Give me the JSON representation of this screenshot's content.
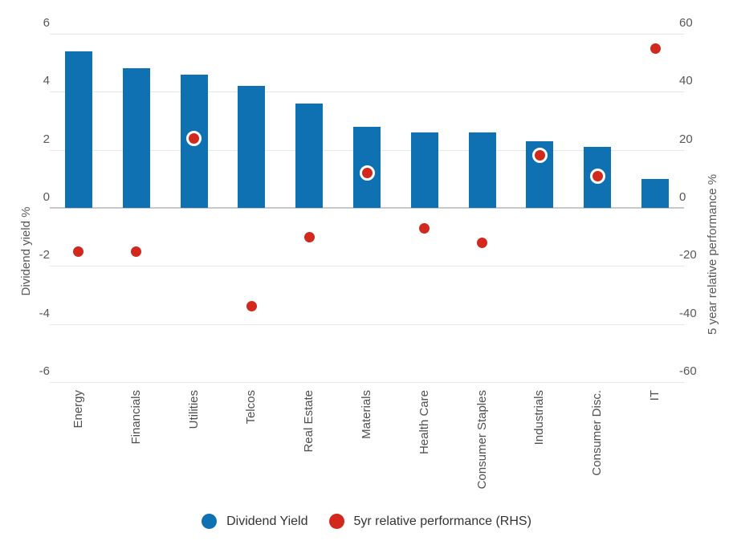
{
  "chart_data": {
    "type": "combo-bar-scatter",
    "categories": [
      "Energy",
      "Financials",
      "Utilities",
      "Telcos",
      "Real Estate",
      "Materials",
      "Health Care",
      "Consumer Staples",
      "Industrials",
      "Consumer Disc.",
      "IT"
    ],
    "series": [
      {
        "name": "Dividend Yield",
        "type": "bar",
        "axis": "left",
        "color": "#0F70B2",
        "values": [
          5.4,
          4.8,
          4.6,
          4.2,
          3.6,
          2.8,
          2.6,
          2.6,
          2.3,
          2.1,
          1.0
        ]
      },
      {
        "name": "5yr relative performance (RHS)",
        "type": "scatter",
        "axis": "right",
        "color": "#D2281E",
        "marker_ring_color": "#FFFFFF",
        "values": [
          -15,
          -15,
          24,
          -34,
          -10,
          12,
          -7,
          -12,
          18,
          11,
          55
        ]
      }
    ],
    "left_axis": {
      "title": "Dividend yield %",
      "min": -6,
      "max": 6,
      "ticks": [
        6,
        4,
        2,
        0,
        -2,
        -4,
        -6
      ]
    },
    "right_axis": {
      "title": "5 year relative performance %",
      "min": -60,
      "max": 60,
      "ticks": [
        60,
        40,
        20,
        0,
        -20,
        -40,
        -60
      ]
    },
    "grid": true,
    "legend_position": "bottom",
    "title": ""
  },
  "colors": {
    "grid": "#E7E7E7",
    "zero_line": "#C9C9C9",
    "tick_text": "#575757",
    "axis_title_text": "#595959",
    "legend_text": "#333333",
    "background": "#FFFFFF"
  }
}
